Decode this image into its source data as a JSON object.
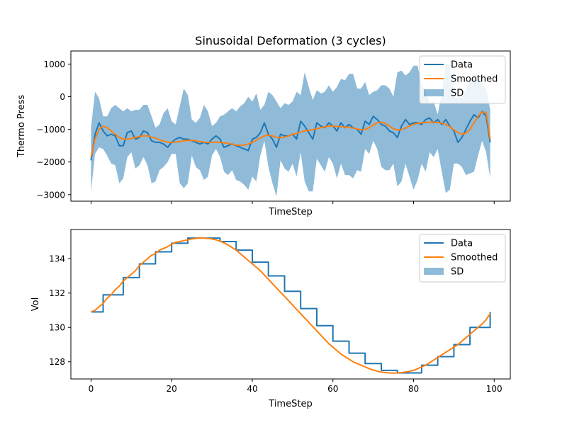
{
  "figure": {
    "title": "Sinusoidal Deformation (3 cycles)"
  },
  "colors": {
    "data": "#1f77b4",
    "smoothed": "#ff7f0e",
    "sd_fill": "#1f77b4"
  },
  "chart_data": [
    {
      "type": "line",
      "title": "Sinusoidal Deformation (3 cycles)",
      "xlabel": "TimeStep",
      "ylabel": "Thermo Press",
      "xlim": [
        -5,
        104
      ],
      "ylim": [
        -3200,
        1400
      ],
      "xticks": [
        0,
        20,
        40,
        60,
        80,
        100
      ],
      "xtick_labels_visible": false,
      "yticks": [
        -3000,
        -2000,
        -1000,
        0,
        1000
      ],
      "ytick_labels": [
        "−3000",
        "−2000",
        "−1000",
        "0",
        "1000"
      ],
      "legend": {
        "position": "top-right",
        "entries": [
          "Data",
          "Smoothed",
          "SD"
        ]
      },
      "x_start": 0,
      "x_step": 1,
      "series": [
        {
          "name": "Data",
          "kind": "line",
          "values": [
            -1950,
            -1150,
            -800,
            -1050,
            -1200,
            -1150,
            -1200,
            -1500,
            -1500,
            -1100,
            -1050,
            -1300,
            -1250,
            -1050,
            -1100,
            -1350,
            -1400,
            -1400,
            -1450,
            -1550,
            -1400,
            -1300,
            -1250,
            -1300,
            -1300,
            -1350,
            -1400,
            -1450,
            -1400,
            -1450,
            -1300,
            -1200,
            -1300,
            -1550,
            -1500,
            -1450,
            -1500,
            -1550,
            -1600,
            -1650,
            -1300,
            -1250,
            -1100,
            -800,
            -1150,
            -1300,
            -1550,
            -1150,
            -1200,
            -1200,
            -1150,
            -1300,
            -750,
            -900,
            -1100,
            -1300,
            -800,
            -900,
            -950,
            -800,
            -900,
            -1050,
            -800,
            -950,
            -850,
            -950,
            -1000,
            -1150,
            -750,
            -850,
            -600,
            -700,
            -850,
            -900,
            -1050,
            -1100,
            -1250,
            -900,
            -700,
            -850,
            -800,
            -800,
            -850,
            -700,
            -650,
            -800,
            -700,
            -850,
            -700,
            -900,
            -1050,
            -1400,
            -1250,
            -1000,
            -750,
            -550,
            -650,
            -450,
            -600,
            -1400
          ]
        },
        {
          "name": "Smoothed",
          "kind": "line",
          "values": [
            -1850,
            -1300,
            -1000,
            -900,
            -950,
            -1050,
            -1150,
            -1250,
            -1300,
            -1300,
            -1280,
            -1250,
            -1220,
            -1200,
            -1200,
            -1230,
            -1270,
            -1320,
            -1360,
            -1390,
            -1400,
            -1390,
            -1370,
            -1350,
            -1340,
            -1340,
            -1350,
            -1370,
            -1390,
            -1400,
            -1400,
            -1390,
            -1400,
            -1410,
            -1430,
            -1460,
            -1480,
            -1490,
            -1480,
            -1450,
            -1400,
            -1330,
            -1260,
            -1200,
            -1180,
            -1200,
            -1240,
            -1260,
            -1240,
            -1200,
            -1160,
            -1120,
            -1080,
            -1050,
            -1030,
            -1010,
            -980,
            -950,
            -920,
            -900,
            -900,
            -910,
            -920,
            -930,
            -940,
            -960,
            -990,
            -1010,
            -1000,
            -950,
            -870,
            -800,
            -780,
            -820,
            -900,
            -980,
            -1020,
            -1010,
            -960,
            -900,
            -850,
            -820,
            -800,
            -790,
            -780,
            -780,
            -790,
            -810,
            -850,
            -920,
            -1020,
            -1100,
            -1150,
            -1120,
            -1000,
            -800,
            -600,
            -470,
            -480,
            -1300
          ]
        }
      ],
      "sd_band": {
        "name": "SD",
        "kind": "area",
        "lower": [
          -2900,
          -1750,
          -1550,
          -1600,
          -1800,
          -2050,
          -2100,
          -2650,
          -2500,
          -1850,
          -1700,
          -2200,
          -2100,
          -1850,
          -2100,
          -2650,
          -2600,
          -2250,
          -2150,
          -2000,
          -1750,
          -1750,
          -2650,
          -2800,
          -2650,
          -1800,
          -2150,
          -2250,
          -2550,
          -2450,
          -1800,
          -1600,
          -1850,
          -2300,
          -2400,
          -2250,
          -2550,
          -2600,
          -2700,
          -2850,
          -2450,
          -2600,
          -1800,
          -1350,
          -2150,
          -2650,
          -3050,
          -1950,
          -2200,
          -2300,
          -2050,
          -2450,
          -1700,
          -2600,
          -2900,
          -2900,
          -1900,
          -2100,
          -2300,
          -1850,
          -2050,
          -2500,
          -2050,
          -2400,
          -2400,
          -2500,
          -2250,
          -2300,
          -1600,
          -1750,
          -1350,
          -1600,
          -2150,
          -2250,
          -2250,
          -2050,
          -2750,
          -2600,
          -2050,
          -2450,
          -2850,
          -2550,
          -2050,
          -2300,
          -1700,
          -1850,
          -1600,
          -2300,
          -2950,
          -2850,
          -2050,
          -2050,
          -2150,
          -2400,
          -2350,
          -2300,
          -1800,
          -1350,
          -1700,
          -2500
        ],
        "upper": [
          -950,
          150,
          -50,
          -600,
          -600,
          -350,
          -250,
          -350,
          -450,
          -350,
          -450,
          -400,
          -400,
          -250,
          -250,
          -600,
          -950,
          -850,
          -500,
          -350,
          -750,
          -850,
          -300,
          250,
          50,
          -700,
          -800,
          -650,
          -250,
          -450,
          -900,
          -800,
          -600,
          -550,
          -450,
          -350,
          -450,
          -300,
          -200,
          0,
          -150,
          100,
          -400,
          -250,
          150,
          50,
          -150,
          -350,
          -200,
          -250,
          -150,
          150,
          50,
          750,
          300,
          -100,
          200,
          100,
          150,
          350,
          150,
          300,
          550,
          500,
          700,
          700,
          250,
          250,
          450,
          50,
          150,
          200,
          350,
          350,
          250,
          0,
          750,
          800,
          650,
          750,
          950,
          950,
          350,
          200,
          -200,
          -150,
          -550,
          150,
          1000,
          1000,
          50,
          -50,
          0,
          200,
          500,
          700,
          550,
          400,
          250,
          -400
        ]
      }
    },
    {
      "type": "line",
      "title": "",
      "xlabel": "TimeStep",
      "ylabel": "Vol",
      "xlim": [
        -5,
        104
      ],
      "ylim": [
        127.0,
        135.7
      ],
      "xticks": [
        0,
        20,
        40,
        60,
        80,
        100
      ],
      "xtick_labels": [
        "0",
        "20",
        "40",
        "60",
        "80",
        "100"
      ],
      "yticks": [
        128,
        130,
        132,
        134
      ],
      "ytick_labels": [
        "128",
        "130",
        "132",
        "134"
      ],
      "legend": {
        "position": "top-right",
        "entries": [
          "Data",
          "Smoothed",
          "SD"
        ]
      },
      "x_start": 0,
      "x_step": 1,
      "series": [
        {
          "name": "Data",
          "kind": "step",
          "values": [
            130.9,
            130.9,
            130.9,
            131.9,
            131.9,
            131.9,
            131.9,
            131.9,
            132.9,
            132.9,
            132.9,
            132.9,
            133.7,
            133.7,
            133.7,
            133.7,
            134.4,
            134.4,
            134.4,
            134.4,
            134.9,
            134.9,
            134.9,
            134.9,
            135.2,
            135.2,
            135.2,
            135.2,
            135.2,
            135.2,
            135.2,
            135.2,
            135.0,
            135.0,
            135.0,
            135.0,
            134.5,
            134.5,
            134.5,
            134.5,
            133.8,
            133.8,
            133.8,
            133.8,
            133.0,
            133.0,
            133.0,
            133.0,
            132.1,
            132.1,
            132.1,
            132.1,
            131.1,
            131.1,
            131.1,
            131.1,
            130.1,
            130.1,
            130.1,
            130.1,
            129.2,
            129.2,
            129.2,
            129.2,
            128.5,
            128.5,
            128.5,
            128.5,
            127.9,
            127.9,
            127.9,
            127.9,
            127.5,
            127.5,
            127.5,
            127.5,
            127.35,
            127.35,
            127.35,
            127.35,
            127.35,
            127.35,
            127.8,
            127.8,
            127.8,
            127.8,
            128.3,
            128.3,
            128.3,
            128.3,
            129.0,
            129.0,
            129.0,
            129.0,
            130.0,
            130.0,
            130.0,
            130.0,
            130.0,
            130.9
          ]
        },
        {
          "name": "Smoothed",
          "kind": "line",
          "values": [
            130.9,
            131.0,
            131.2,
            131.4,
            131.7,
            131.9,
            132.2,
            132.4,
            132.7,
            132.9,
            133.1,
            133.3,
            133.6,
            133.8,
            134.0,
            134.2,
            134.3,
            134.5,
            134.6,
            134.7,
            134.85,
            134.95,
            135.0,
            135.05,
            135.1,
            135.15,
            135.18,
            135.2,
            135.2,
            135.18,
            135.15,
            135.1,
            135.02,
            134.92,
            134.8,
            134.65,
            134.5,
            134.3,
            134.1,
            133.9,
            133.7,
            133.5,
            133.3,
            133.05,
            132.8,
            132.55,
            132.3,
            132.05,
            131.8,
            131.55,
            131.3,
            131.05,
            130.8,
            130.55,
            130.3,
            130.05,
            129.8,
            129.55,
            129.3,
            129.05,
            128.85,
            128.65,
            128.45,
            128.3,
            128.15,
            128.0,
            127.9,
            127.8,
            127.7,
            127.6,
            127.52,
            127.45,
            127.4,
            127.37,
            127.35,
            127.34,
            127.35,
            127.37,
            127.4,
            127.45,
            127.5,
            127.6,
            127.7,
            127.8,
            127.95,
            128.1,
            128.25,
            128.4,
            128.55,
            128.7,
            128.85,
            129.0,
            129.2,
            129.4,
            129.6,
            129.8,
            130.0,
            130.2,
            130.45,
            130.8
          ]
        }
      ]
    }
  ]
}
